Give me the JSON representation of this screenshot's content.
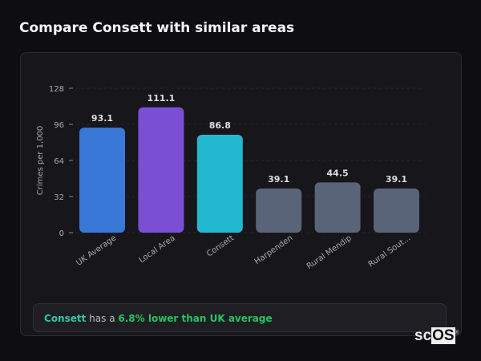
{
  "title": "Compare Consett with similar areas",
  "chart_data": {
    "type": "bar",
    "categories": [
      "UK Average",
      "Local Area",
      "Consett",
      "Harpenden",
      "Rural Mendip",
      "Rural Sout..."
    ],
    "values": [
      93.1,
      111.1,
      86.8,
      39.1,
      44.5,
      39.1
    ],
    "data_labels": [
      "93.1",
      "111.1",
      "86.8",
      "39.1",
      "44.5",
      "39.1"
    ],
    "colors": [
      "#3a78d8",
      "#7b4fd4",
      "#22b8d0",
      "#5a6478",
      "#5a6478",
      "#5a6478"
    ],
    "ylabel": "Crimes per 1,000",
    "yticks": [
      "0",
      "32",
      "64",
      "96",
      "128"
    ],
    "ylim": [
      0,
      128
    ],
    "grid": true
  },
  "footer": {
    "area": "Consett",
    "middle": " has a ",
    "highlight": "6.8% lower than UK average"
  },
  "logo": "scOS"
}
